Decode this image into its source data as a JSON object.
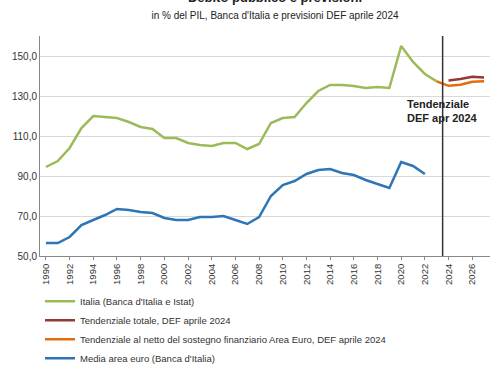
{
  "chart_data": {
    "type": "line",
    "title": "Debito pubblico e previsioni",
    "subtitle": "in % del PIL, Banca d'Italia e previsioni DEF aprile 2024",
    "annotation": "Tendenziale\nDEF apr 2024",
    "x": [
      1990,
      1991,
      1992,
      1993,
      1994,
      1995,
      1996,
      1997,
      1998,
      1999,
      2000,
      2001,
      2002,
      2003,
      2004,
      2005,
      2006,
      2007,
      2008,
      2009,
      2010,
      2011,
      2012,
      2013,
      2014,
      2015,
      2016,
      2017,
      2018,
      2019,
      2020,
      2021,
      2022,
      2023,
      2024,
      2025,
      2026,
      2027
    ],
    "series": [
      {
        "name": "Italia (Banca d'Italia e Istat)",
        "color": "#9bbb59",
        "values": [
          94.5,
          97.5,
          104,
          114,
          120,
          119.5,
          119,
          117,
          114.5,
          113.5,
          109,
          109,
          106.5,
          105.5,
          105,
          106.5,
          106.5,
          103.5,
          106,
          116.5,
          119,
          119.5,
          126.5,
          132.5,
          135.5,
          135.5,
          135,
          134,
          134.5,
          134,
          155,
          147,
          141,
          137.3,
          null,
          null,
          null,
          null
        ]
      },
      {
        "name": "Tendenziale totale, DEF aprile 2024",
        "color": "#953735",
        "values": [
          null,
          null,
          null,
          null,
          null,
          null,
          null,
          null,
          null,
          null,
          null,
          null,
          null,
          null,
          null,
          null,
          null,
          null,
          null,
          null,
          null,
          null,
          null,
          null,
          null,
          null,
          null,
          null,
          null,
          null,
          null,
          null,
          null,
          null,
          137.8,
          138.5,
          139.6,
          139.3
        ]
      },
      {
        "name": "Tendenziale al netto del sostegno finanziario Area Euro, DEF aprile 2024",
        "color": "#e46c0a",
        "values": [
          null,
          null,
          null,
          null,
          null,
          null,
          null,
          null,
          null,
          null,
          null,
          null,
          null,
          null,
          null,
          null,
          null,
          null,
          null,
          null,
          null,
          null,
          null,
          null,
          null,
          null,
          null,
          null,
          null,
          null,
          null,
          null,
          null,
          137.3,
          135.1,
          135.6,
          137.1,
          137.4
        ]
      },
      {
        "name": "Media area euro (Banca d'Italia)",
        "color": "#2e75b6",
        "values": [
          56.5,
          56.5,
          59.5,
          65.5,
          68,
          70.5,
          73.5,
          73,
          72,
          71.5,
          69,
          68,
          68,
          69.5,
          69.5,
          70,
          68,
          66,
          69.5,
          80,
          85.5,
          87.5,
          91,
          93,
          93.5,
          91.5,
          90.5,
          88,
          86,
          84,
          97,
          95,
          91,
          null,
          null,
          null,
          null,
          null
        ]
      }
    ],
    "xlim": [
      1989.5,
      2027.5
    ],
    "xticks": [
      1990,
      1992,
      1994,
      1996,
      1998,
      2000,
      2002,
      2004,
      2006,
      2008,
      2010,
      2012,
      2014,
      2016,
      2018,
      2020,
      2022,
      2024,
      2026
    ],
    "ylim": [
      50,
      160
    ],
    "yticks": [
      {
        "value": 50,
        "label": "50,0"
      },
      {
        "value": 70,
        "label": "70,0"
      },
      {
        "value": 90,
        "label": "90,0"
      },
      {
        "value": 110,
        "label": "110,0"
      },
      {
        "value": 130,
        "label": "130,0"
      },
      {
        "value": 150,
        "label": "150,0"
      }
    ],
    "grid": true,
    "legend": "bottom"
  }
}
